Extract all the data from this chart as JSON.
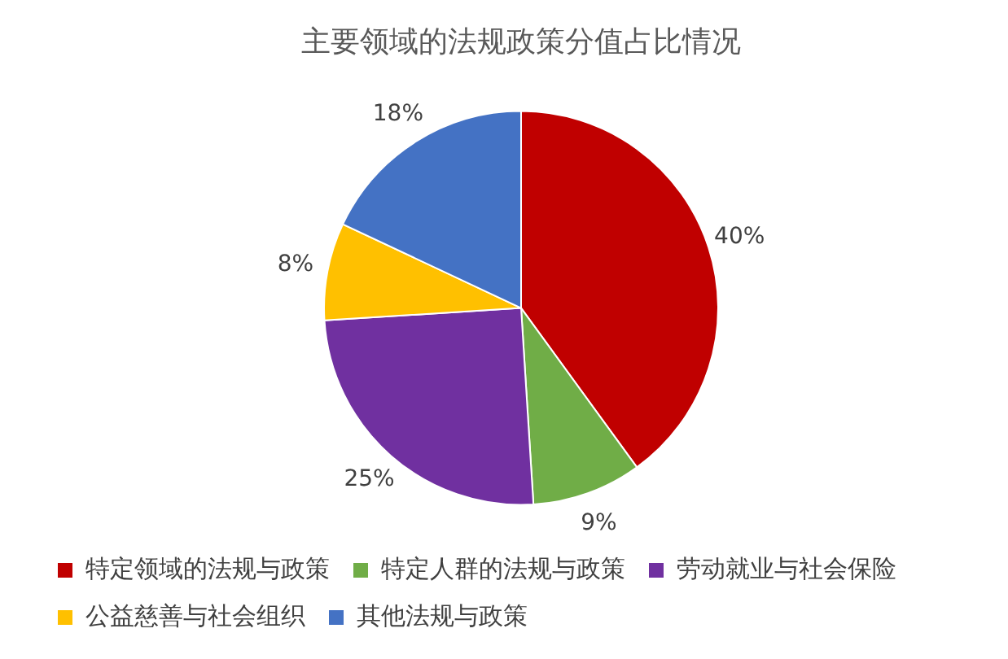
{
  "chart_data": {
    "type": "pie",
    "title": "主要领域的法规政策分值占比情况",
    "categories": [
      "特定领域的法规与政策",
      "特定人群的法规与政策",
      "劳动就业与社会保险",
      "公益慈善与社会组织",
      "其他法规与政策"
    ],
    "values": [
      40,
      9,
      25,
      8,
      18
    ],
    "colors": [
      "#c00000",
      "#70ad47",
      "#7030a0",
      "#ffc000",
      "#4472c4"
    ],
    "value_labels": [
      "40%",
      "9%",
      "25%",
      "8%",
      "18%"
    ],
    "legend": "bottom"
  }
}
